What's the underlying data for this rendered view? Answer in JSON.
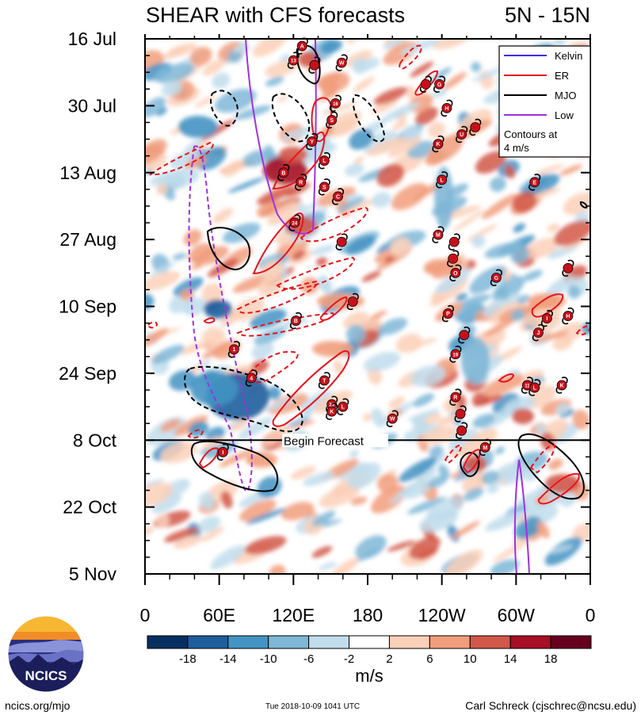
{
  "chart_data": {
    "type": "heatmap",
    "title": "SHEAR with CFS forecasts",
    "region": "5N - 15N",
    "x_tick_labels": [
      "0",
      "60E",
      "120E",
      "180",
      "120W",
      "60W",
      "0"
    ],
    "x_ticks_deg": [
      0,
      60,
      120,
      180,
      240,
      300,
      360
    ],
    "y_tick_labels": [
      "16 Jul",
      "30 Jul",
      "13 Aug",
      "27 Aug",
      "10 Sep",
      "24 Sep",
      "8 Oct",
      "22 Oct",
      "5 Nov"
    ],
    "y_ticks_day": [
      0,
      14,
      28,
      42,
      56,
      70,
      84,
      98,
      112
    ],
    "ylim_days": [
      0,
      112
    ],
    "xlim_deg": [
      0,
      360
    ],
    "forecast_start_day": 84,
    "forecast_label": "Begin Forecast",
    "colorbar": {
      "label": "m/s",
      "tick_labels": [
        "-18",
        "-14",
        "-10",
        "-6",
        "-2",
        "2",
        "6",
        "10",
        "14",
        "18"
      ],
      "colors": [
        "#053061",
        "#1f5e9c",
        "#4393c3",
        "#7fb7d7",
        "#c1ddec",
        "#ffffff",
        "#fbd0b9",
        "#f19e7c",
        "#d25849",
        "#a60f26",
        "#67001f"
      ]
    },
    "legend": {
      "placement": "top-right",
      "entries": [
        {
          "name": "Kelvin",
          "color": "#3a2fe0"
        },
        {
          "name": "ER",
          "color": "#e8141b"
        },
        {
          "name": "MJO",
          "color": "#000000"
        },
        {
          "name": "Low",
          "color": "#a030e0"
        }
      ],
      "note_line1": "Contours at",
      "note_line2": "4 m/s"
    },
    "storms": [
      {
        "label": "A",
        "lon": 127,
        "day": 1.5
      },
      {
        "label": "13",
        "lon": 120,
        "day": 4.5
      },
      {
        "label": "",
        "lon": 137,
        "day": 5.5
      },
      {
        "label": "W",
        "lon": 159,
        "day": 5
      },
      {
        "label": "",
        "lon": 227,
        "day": 9.5
      },
      {
        "label": "G",
        "lon": 238,
        "day": 9.5
      },
      {
        "label": "16",
        "lon": 154,
        "day": 13.5
      },
      {
        "label": "S",
        "lon": 151,
        "day": 17
      },
      {
        "label": "H",
        "lon": 244,
        "day": 14.5
      },
      {
        "label": "",
        "lon": 267,
        "day": 18.5
      },
      {
        "label": "U",
        "lon": 256,
        "day": 20
      },
      {
        "label": "K",
        "lon": 237,
        "day": 22
      },
      {
        "label": "Y",
        "lon": 135,
        "day": 21.5
      },
      {
        "label": "L",
        "lon": 145,
        "day": 25.5
      },
      {
        "label": "B",
        "lon": 112,
        "day": 28
      },
      {
        "label": "R",
        "lon": 126,
        "day": 30
      },
      {
        "label": "S",
        "lon": 145,
        "day": 31
      },
      {
        "label": "C",
        "lon": 156,
        "day": 33
      },
      {
        "label": "E",
        "lon": 315,
        "day": 30
      },
      {
        "label": "L",
        "lon": 240,
        "day": 29.5
      },
      {
        "label": "24",
        "lon": 121,
        "day": 38.5
      },
      {
        "label": "M",
        "lon": 237,
        "day": 41
      },
      {
        "label": "",
        "lon": 250,
        "day": 42.5
      },
      {
        "label": "",
        "lon": 159,
        "day": 42.5
      },
      {
        "label": "",
        "lon": 249,
        "day": 46
      },
      {
        "label": "O",
        "lon": 251,
        "day": 49
      },
      {
        "label": "G",
        "lon": 284,
        "day": 50
      },
      {
        "label": "",
        "lon": 342,
        "day": 48
      },
      {
        "label": "",
        "lon": 168,
        "day": 55
      },
      {
        "label": "P",
        "lon": 245,
        "day": 57.5
      },
      {
        "label": "B",
        "lon": 122,
        "day": 59
      },
      {
        "label": "I",
        "lon": 325,
        "day": 58.5
      },
      {
        "label": "H",
        "lon": 342,
        "day": 58
      },
      {
        "label": "J",
        "lon": 318,
        "day": 61.5
      },
      {
        "label": "",
        "lon": 258,
        "day": 62
      },
      {
        "label": "1",
        "lon": 72,
        "day": 65
      },
      {
        "label": "19",
        "lon": 251,
        "day": 66
      },
      {
        "label": "4",
        "lon": 86,
        "day": 71
      },
      {
        "label": "T",
        "lon": 145,
        "day": 71.5
      },
      {
        "label": "11",
        "lon": 309,
        "day": 72.5
      },
      {
        "label": "L",
        "lon": 315,
        "day": 73
      },
      {
        "label": "K",
        "lon": 337,
        "day": 72.5
      },
      {
        "label": "R",
        "lon": 251,
        "day": 75
      },
      {
        "label": "29",
        "lon": 151,
        "day": 76.5
      },
      {
        "label": "L",
        "lon": 160,
        "day": 77
      },
      {
        "label": "K",
        "lon": 151,
        "day": 78
      },
      {
        "label": "",
        "lon": 255,
        "day": 78.5
      },
      {
        "label": "W",
        "lon": 200,
        "day": 79.5
      },
      {
        "label": "",
        "lon": 256,
        "day": 82
      },
      {
        "label": "M",
        "lon": 275,
        "day": 85.5
      },
      {
        "label": "I",
        "lon": 63,
        "day": 86.5
      }
    ]
  },
  "branding": {
    "logo_text": "NCICS",
    "site": "ncics.org/mjo",
    "timestamp": "Tue 2018-10-09 1041 UTC",
    "author": "Carl Schreck (cjschrec@ncsu.edu)"
  }
}
